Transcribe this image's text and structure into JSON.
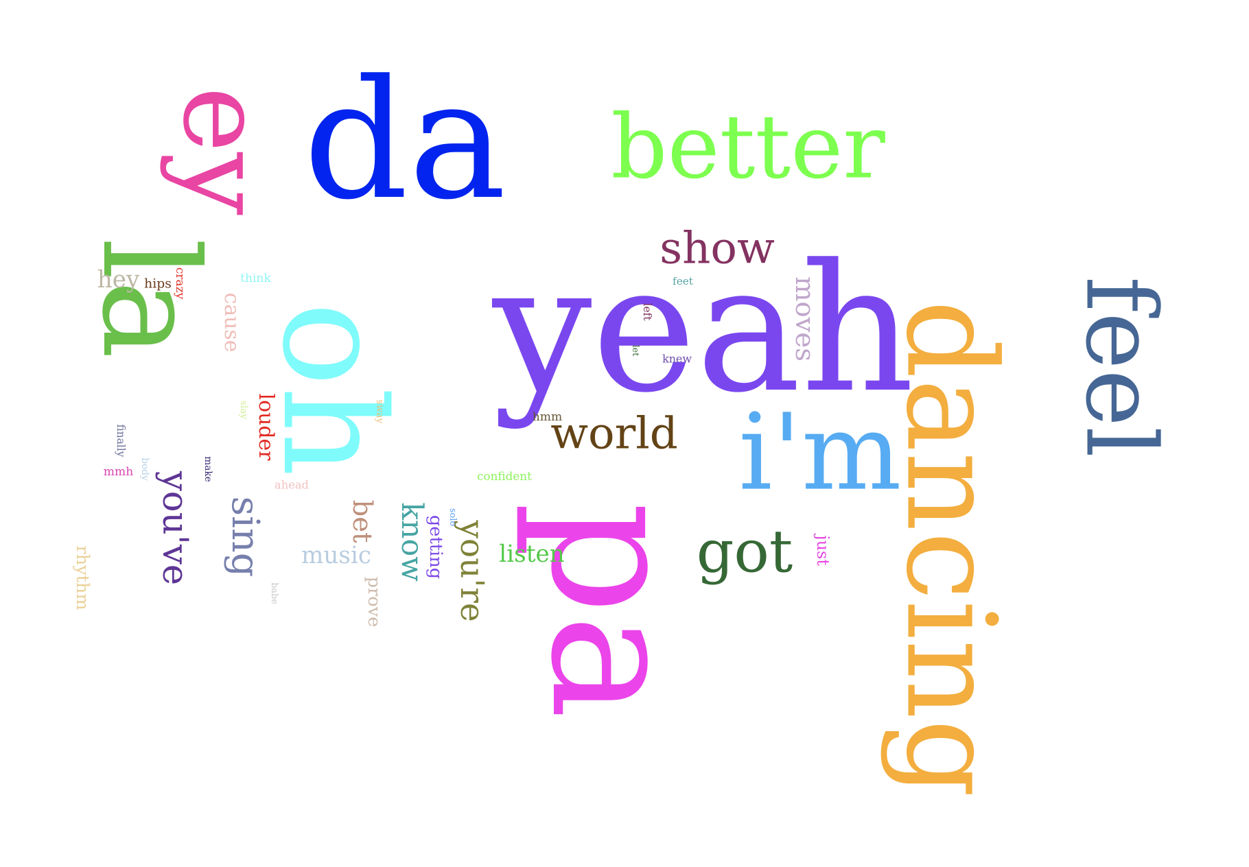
{
  "words": [
    {
      "key": "da",
      "text": "da",
      "color": "#0224ee",
      "rotated": false
    },
    {
      "key": "la",
      "text": "la",
      "color": "#6abf4b",
      "rotated": true
    },
    {
      "key": "ey",
      "text": "ey",
      "color": "#e945a3",
      "rotated": true
    },
    {
      "key": "better",
      "text": "better",
      "color": "#7dff4f",
      "rotated": false
    },
    {
      "key": "yeah",
      "text": "yeah",
      "color": "#7a47ef",
      "rotated": false
    },
    {
      "key": "pa",
      "text": "pa",
      "color": "#eb44ea",
      "rotated": true
    },
    {
      "key": "oh",
      "text": "oh",
      "color": "#7ffbfb",
      "rotated": true
    },
    {
      "key": "dancing",
      "text": "dancing",
      "color": "#f3ae3f",
      "rotated": true
    },
    {
      "key": "feel",
      "text": "feel",
      "color": "#466795",
      "rotated": true
    },
    {
      "key": "im",
      "text": "i'm",
      "color": "#57abf2",
      "rotated": false
    },
    {
      "key": "show",
      "text": "show",
      "color": "#843261",
      "rotated": false
    },
    {
      "key": "world",
      "text": "world",
      "color": "#634316",
      "rotated": false
    },
    {
      "key": "got",
      "text": "got",
      "color": "#366836",
      "rotated": false
    },
    {
      "key": "youve",
      "text": "you've",
      "color": "#5e3595",
      "rotated": true
    },
    {
      "key": "sing",
      "text": "sing",
      "color": "#767fac",
      "rotated": true
    },
    {
      "key": "youre",
      "text": "you're",
      "color": "#7f8237",
      "rotated": true
    },
    {
      "key": "know",
      "text": "know",
      "color": "#46a5a3",
      "rotated": true
    },
    {
      "key": "bet",
      "text": "bet",
      "color": "#be907b",
      "rotated": true
    },
    {
      "key": "moves",
      "text": "moves",
      "color": "#c0a6cb",
      "rotated": true
    },
    {
      "key": "louder",
      "text": "louder",
      "color": "#e22a22",
      "rotated": true
    },
    {
      "key": "music",
      "text": "music",
      "color": "#b9cde0",
      "rotated": false
    },
    {
      "key": "prove",
      "text": "prove",
      "color": "#cdbbac",
      "rotated": true
    },
    {
      "key": "getting",
      "text": "getting",
      "color": "#7d49e8",
      "rotated": true
    },
    {
      "key": "listen",
      "text": "listen",
      "color": "#52c848",
      "rotated": false
    },
    {
      "key": "rhythm",
      "text": "rhythm",
      "color": "#ead097",
      "rotated": true
    },
    {
      "key": "hey",
      "text": "hey",
      "color": "#bdb8a5",
      "rotated": false
    },
    {
      "key": "cause",
      "text": "cause",
      "color": "#f0bdb8",
      "rotated": true
    },
    {
      "key": "just",
      "text": "just",
      "color": "#e647e3",
      "rotated": true
    },
    {
      "key": "hips",
      "text": "hips",
      "color": "#6b3a1c",
      "rotated": false
    },
    {
      "key": "crazy",
      "text": "crazy",
      "color": "#e0352a",
      "rotated": true
    },
    {
      "key": "think",
      "text": "think",
      "color": "#8ef5f8",
      "rotated": false
    },
    {
      "key": "feet",
      "text": "feet",
      "color": "#58a3a3",
      "rotated": false
    },
    {
      "key": "left",
      "text": "left",
      "color": "#7a2f5b",
      "rotated": true
    },
    {
      "key": "let",
      "text": "let",
      "color": "#3b6f3b",
      "rotated": true
    },
    {
      "key": "knew",
      "text": "knew",
      "color": "#6c4ca9",
      "rotated": false
    },
    {
      "key": "hmm",
      "text": "hmm",
      "color": "#645536",
      "rotated": false
    },
    {
      "key": "confident",
      "text": "confident",
      "color": "#8ef25b",
      "rotated": false
    },
    {
      "key": "solo",
      "text": "solo",
      "color": "#5aa0f3",
      "rotated": true
    },
    {
      "key": "sway",
      "text": "sway",
      "color": "#e8c07a",
      "rotated": true
    },
    {
      "key": "slay",
      "text": "slay",
      "color": "#d1ef97",
      "rotated": true
    },
    {
      "key": "finally",
      "text": "finally",
      "color": "#6c709b",
      "rotated": true
    },
    {
      "key": "body",
      "text": "body",
      "color": "#b8d3e8",
      "rotated": true
    },
    {
      "key": "mmh",
      "text": "mmh",
      "color": "#da46b0",
      "rotated": false
    },
    {
      "key": "make",
      "text": "make",
      "color": "#3a2b78",
      "rotated": true
    },
    {
      "key": "ahead",
      "text": "ahead",
      "color": "#f3c2c2",
      "rotated": false
    },
    {
      "key": "babe",
      "text": "babe",
      "color": "#c8c8c8",
      "rotated": true
    }
  ]
}
